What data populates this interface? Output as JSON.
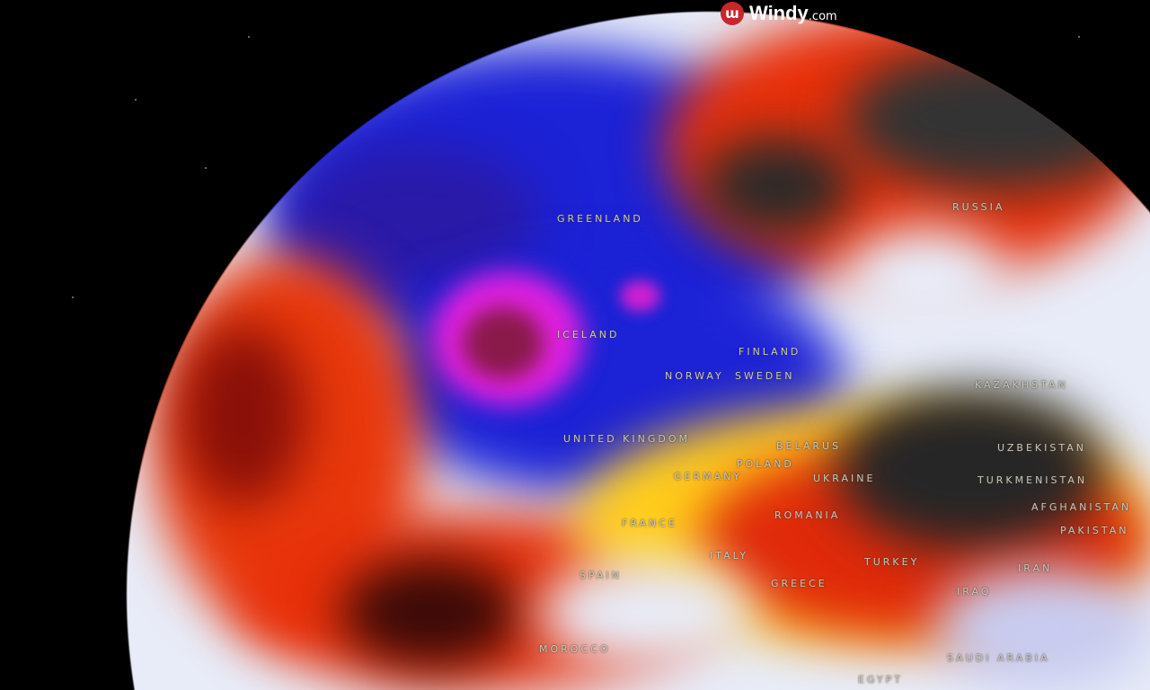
{
  "brand": {
    "name": "Windy",
    "suffix": ".com",
    "icon": "windy-logo-icon",
    "color": "#c8262b"
  },
  "map": {
    "colors": {
      "cold": "#1a1ad8",
      "very_cold": "#e020e0",
      "neutral": "#e8ecf8",
      "warm": "#ffd21a",
      "hot": "#e82a0a",
      "very_hot": "#2a2a2a"
    },
    "labels": [
      "GREENLAND",
      "RUSSIA",
      "ICELAND",
      "FINLAND",
      "NORWAY",
      "SWEDEN",
      "UNITED KINGDOM",
      "BELARUS",
      "POLAND",
      "GERMANY",
      "UKRAINE",
      "KAZAKHSTAN",
      "UZBEKISTAN",
      "TURKMENISTAN",
      "AFGHANISTAN",
      "PAKISTAN",
      "FRANCE",
      "ROMANIA",
      "SPAIN",
      "ITALY",
      "GREECE",
      "TURKEY",
      "IRAN",
      "IRAQ",
      "MOROCCO",
      "SAUDI ARABIA",
      "EGYPT"
    ]
  }
}
